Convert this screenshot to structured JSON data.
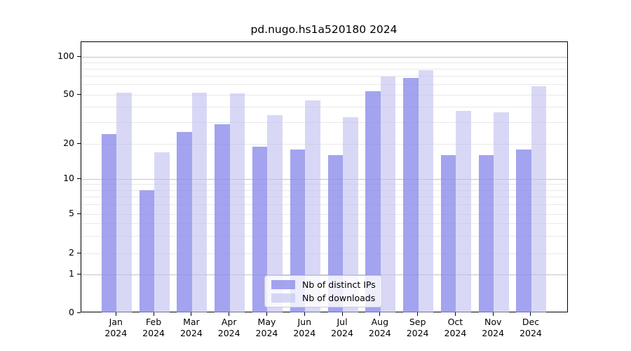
{
  "title": "pd.nugo.hs1a520180 2024",
  "chart_data": {
    "type": "bar",
    "title": "pd.nugo.hs1a520180 2024",
    "categories": [
      "Jan 2024",
      "Feb 2024",
      "Mar 2024",
      "Apr 2024",
      "May 2024",
      "Jun 2024",
      "Jul 2024",
      "Aug 2024",
      "Sep 2024",
      "Oct 2024",
      "Nov 2024",
      "Dec 2024"
    ],
    "series": [
      {
        "name": "Nb of distinct IPs",
        "values": [
          24,
          8,
          25,
          29,
          19,
          18,
          16,
          53,
          68,
          16,
          16,
          18
        ]
      },
      {
        "name": "Nb of downloads",
        "values": [
          52,
          17,
          52,
          51,
          34,
          45,
          33,
          70,
          78,
          37,
          36,
          58
        ]
      }
    ],
    "xlabel": "",
    "ylabel": "",
    "yscale": "log-like",
    "yticks": [
      0,
      1,
      2,
      5,
      10,
      20,
      50,
      100
    ],
    "ytick_labels": [
      "0",
      "1",
      "2",
      "5",
      "10",
      "20",
      "50",
      "100"
    ],
    "major_grid_values": [
      1,
      10,
      100
    ],
    "minor_grid_values": [
      2,
      3,
      4,
      5,
      6,
      7,
      8,
      9,
      20,
      30,
      40,
      50,
      60,
      70,
      80,
      90
    ],
    "ylim": [
      0,
      130
    ],
    "grid": "horizontal",
    "legend_position": "bottom-center",
    "colors": {
      "distinct_ips": "rgba(140,140,235,0.8)",
      "downloads": "rgba(190,190,240,0.6)",
      "grid_major": "#c4c4c4",
      "grid_minor": "#e9e9e9",
      "axis": "#000000"
    }
  }
}
